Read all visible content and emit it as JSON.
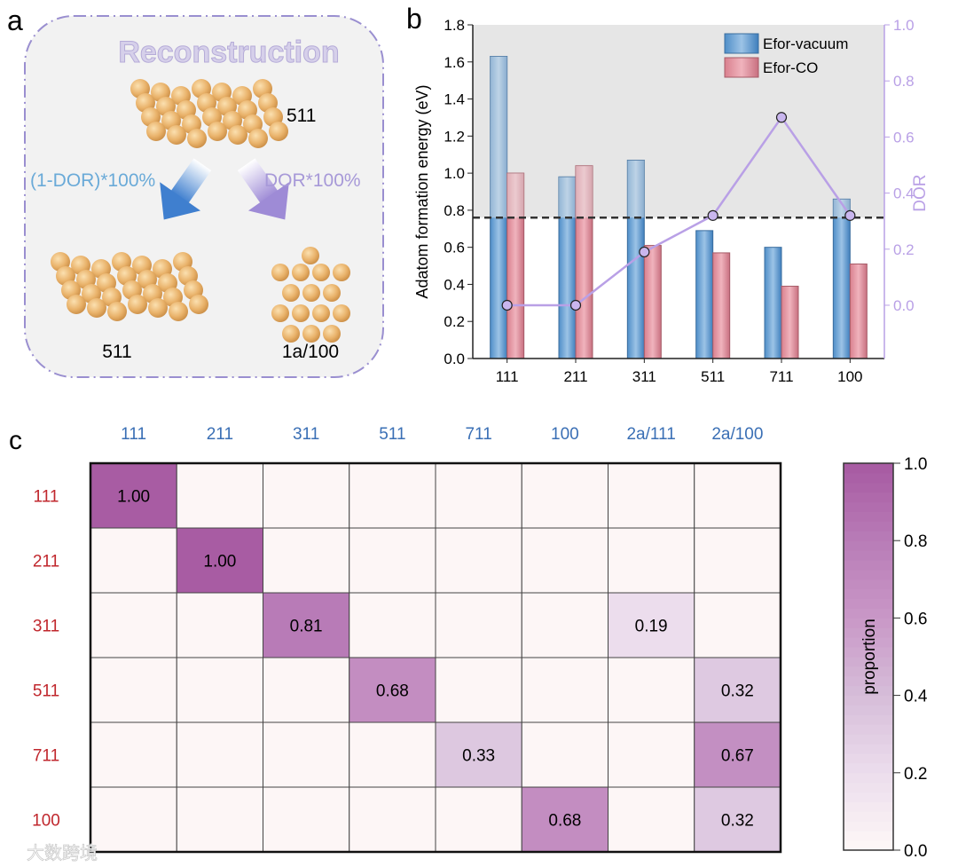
{
  "panel_a": {
    "label": "a",
    "title": "Reconstruction",
    "top_label": "511",
    "left_arrow_label": "(1-DOR)*100%",
    "right_arrow_label": "DOR*100%",
    "bottom_left_label": "511",
    "bottom_right_label": "1a/100"
  },
  "panel_b_label": "b",
  "panel_c_label": "c",
  "watermark": "大数跨境",
  "colors": {
    "vacuum": "#5b9bd0",
    "co": "#e0909c",
    "dor": "#b9a0e6",
    "cmap_low": "#fdf6f6",
    "cmap_high": "#a85ca3",
    "row_label": "#c0272d",
    "col_label": "#3a6fb5"
  },
  "chart_data": [
    {
      "type": "bar",
      "title": "",
      "categories": [
        "111",
        "211",
        "311",
        "511",
        "711",
        "100"
      ],
      "ylabel": "Adatom formation energy (eV)",
      "y2label": "DOR",
      "ylim": [
        0,
        1.8
      ],
      "y2lim": [
        -0.19,
        1.0
      ],
      "yticks": [
        "0.0",
        "0.2",
        "0.4",
        "0.6",
        "0.8",
        "1.0",
        "1.2",
        "1.4",
        "1.6",
        "1.8"
      ],
      "y2ticks": [
        "0.0",
        "0.2",
        "0.4",
        "0.6",
        "0.8",
        "1.0"
      ],
      "threshold": 0.76,
      "legend_position": "top-right",
      "series": [
        {
          "name": "Efor-vacuum",
          "type": "bar",
          "values": [
            1.63,
            0.98,
            1.07,
            0.69,
            0.6,
            0.86
          ]
        },
        {
          "name": "Efor-CO",
          "type": "bar",
          "values": [
            1.0,
            1.04,
            0.61,
            0.57,
            0.39,
            0.51
          ]
        },
        {
          "name": "DOR",
          "type": "line",
          "axis": "right",
          "values": [
            0.0,
            0.0,
            0.19,
            0.32,
            0.67,
            0.32
          ]
        }
      ]
    },
    {
      "type": "heatmap",
      "x_categories": [
        "111",
        "211",
        "311",
        "511",
        "711",
        "100",
        "2a/111",
        "2a/100"
      ],
      "y_categories": [
        "111",
        "211",
        "311",
        "511",
        "711",
        "100"
      ],
      "values": [
        [
          1.0,
          0,
          0,
          0,
          0,
          0,
          0,
          0
        ],
        [
          0,
          1.0,
          0,
          0,
          0,
          0,
          0,
          0
        ],
        [
          0,
          0,
          0.81,
          0,
          0,
          0,
          0.19,
          0
        ],
        [
          0,
          0,
          0,
          0.68,
          0,
          0,
          0,
          0.32
        ],
        [
          0,
          0,
          0,
          0,
          0.33,
          0,
          0,
          0.67
        ],
        [
          0,
          0,
          0,
          0,
          0,
          0.68,
          0,
          0.32
        ]
      ],
      "colorbar_label": "proportion",
      "colorbar_ticks": [
        "0.0",
        "0.2",
        "0.4",
        "0.6",
        "0.8",
        "1.0"
      ],
      "zlim": [
        0,
        1
      ]
    }
  ]
}
